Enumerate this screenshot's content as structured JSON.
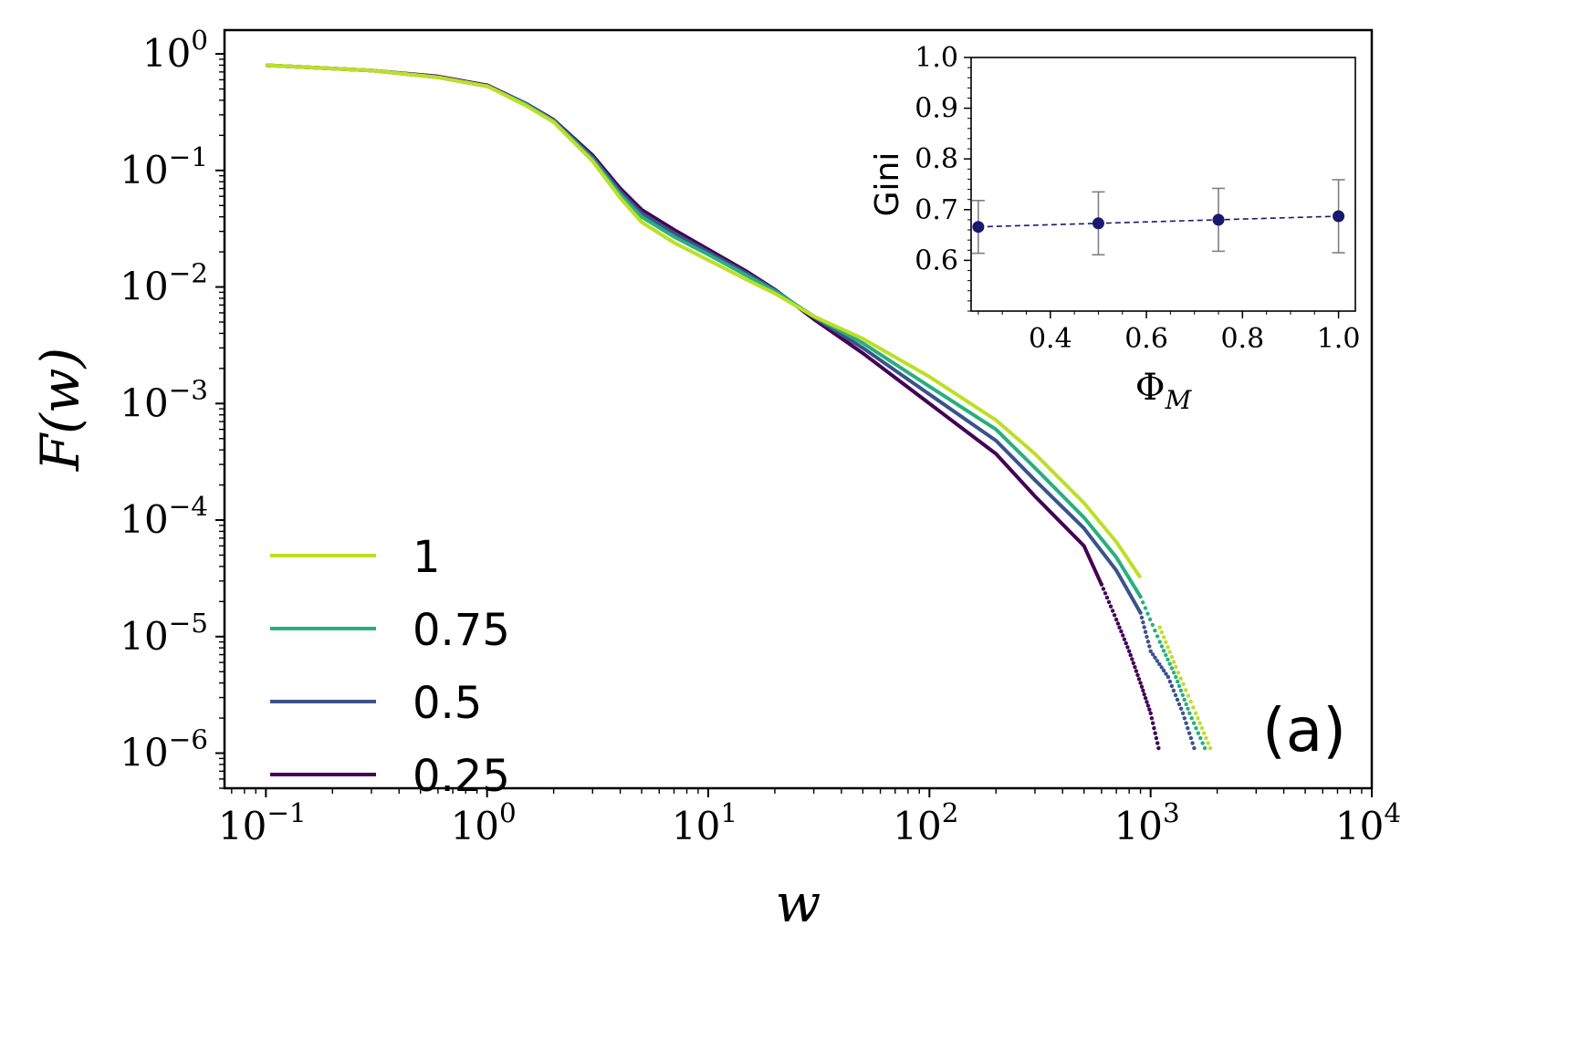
{
  "chart_data": [
    {
      "id": "main",
      "type": "line",
      "xscale": "log",
      "yscale": "log",
      "xlabel": "w",
      "ylabel": "F(w)",
      "xlim": [
        0.065,
        10000
      ],
      "ylim": [
        5e-07,
        1.6
      ],
      "xticks": [
        {
          "value": 0.1,
          "base": "10",
          "exp": "−1"
        },
        {
          "value": 1,
          "base": "10",
          "exp": "0"
        },
        {
          "value": 10,
          "base": "10",
          "exp": "1"
        },
        {
          "value": 100,
          "base": "10",
          "exp": "2"
        },
        {
          "value": 1000,
          "base": "10",
          "exp": "3"
        },
        {
          "value": 10000,
          "base": "10",
          "exp": "4"
        }
      ],
      "yticks": [
        {
          "value": 1,
          "base": "10",
          "exp": "0"
        },
        {
          "value": 0.1,
          "base": "10",
          "exp": "−1"
        },
        {
          "value": 0.01,
          "base": "10",
          "exp": "−2"
        },
        {
          "value": 0.001,
          "base": "10",
          "exp": "−3"
        },
        {
          "value": 0.0001,
          "base": "10",
          "exp": "−4"
        },
        {
          "value": 1e-05,
          "base": "10",
          "exp": "−5"
        },
        {
          "value": 1e-06,
          "base": "10",
          "exp": "−6"
        }
      ],
      "legend_position": "lower-left",
      "panel_label": "(a)",
      "series": [
        {
          "name": "1",
          "color": "#bddf26",
          "points": [
            [
              0.1,
              0.8
            ],
            [
              0.3,
              0.72
            ],
            [
              0.6,
              0.63
            ],
            [
              0.99,
              0.53
            ],
            [
              1.0,
              0.53
            ],
            [
              1.5,
              0.36
            ],
            [
              2.0,
              0.26
            ],
            [
              3.0,
              0.12
            ],
            [
              4.0,
              0.058
            ],
            [
              5.0,
              0.036
            ],
            [
              7.0,
              0.024
            ],
            [
              10,
              0.017
            ],
            [
              15,
              0.0115
            ],
            [
              20,
              0.0088
            ],
            [
              30,
              0.0056
            ],
            [
              50,
              0.0036
            ],
            [
              100,
              0.0017
            ],
            [
              200,
              0.00072
            ],
            [
              300,
              0.00037
            ],
            [
              500,
              0.00014
            ],
            [
              700,
              6.5e-05
            ],
            [
              900,
              3.2e-05
            ],
            [
              1100,
              1.2e-05
            ],
            [
              1300,
              5.5e-06
            ],
            [
              1600,
              2.2e-06
            ],
            [
              1900,
              1e-06
            ]
          ]
        },
        {
          "name": "0.75",
          "color": "#29af7f",
          "points": [
            [
              0.1,
              0.8
            ],
            [
              0.3,
              0.72
            ],
            [
              0.6,
              0.63
            ],
            [
              0.99,
              0.53
            ],
            [
              1.0,
              0.53
            ],
            [
              1.5,
              0.37
            ],
            [
              2.0,
              0.265
            ],
            [
              3.0,
              0.125
            ],
            [
              4.0,
              0.062
            ],
            [
              5.0,
              0.04
            ],
            [
              7.0,
              0.027
            ],
            [
              10,
              0.019
            ],
            [
              15,
              0.0125
            ],
            [
              20,
              0.0092
            ],
            [
              30,
              0.0056
            ],
            [
              50,
              0.0033
            ],
            [
              100,
              0.0014
            ],
            [
              200,
              0.0006
            ],
            [
              300,
              0.00028
            ],
            [
              500,
              0.000105
            ],
            [
              700,
              4.8e-05
            ],
            [
              900,
              2.2e-05
            ],
            [
              1100,
              9e-06
            ],
            [
              1300,
              4.5e-06
            ],
            [
              1500,
              2.2e-06
            ],
            [
              1800,
              1e-06
            ]
          ]
        },
        {
          "name": "0.5",
          "color": "#3b528b",
          "points": [
            [
              0.1,
              0.8
            ],
            [
              0.3,
              0.72
            ],
            [
              0.6,
              0.63
            ],
            [
              0.99,
              0.53
            ],
            [
              1.0,
              0.53
            ],
            [
              1.5,
              0.37
            ],
            [
              2.0,
              0.268
            ],
            [
              3.0,
              0.13
            ],
            [
              4.0,
              0.066
            ],
            [
              5.0,
              0.043
            ],
            [
              7.0,
              0.029
            ],
            [
              10,
              0.02
            ],
            [
              15,
              0.013
            ],
            [
              20,
              0.0094
            ],
            [
              30,
              0.0055
            ],
            [
              50,
              0.003
            ],
            [
              100,
              0.0012
            ],
            [
              200,
              0.00048
            ],
            [
              300,
              0.00022
            ],
            [
              500,
              8.5e-05
            ],
            [
              700,
              3.7e-05
            ],
            [
              900,
              1.6e-05
            ],
            [
              1000,
              7.5e-06
            ],
            [
              1200,
              4.5e-06
            ],
            [
              1400,
              2.2e-06
            ],
            [
              1600,
              1e-06
            ]
          ]
        },
        {
          "name": "0.25",
          "color": "#440154",
          "points": [
            [
              0.1,
              0.8
            ],
            [
              0.3,
              0.72
            ],
            [
              0.6,
              0.64
            ],
            [
              0.99,
              0.54
            ],
            [
              1.0,
              0.54
            ],
            [
              1.5,
              0.375
            ],
            [
              2.0,
              0.272
            ],
            [
              3.0,
              0.135
            ],
            [
              4.0,
              0.07
            ],
            [
              5.0,
              0.046
            ],
            [
              7.0,
              0.031
            ],
            [
              10,
              0.021
            ],
            [
              15,
              0.0135
            ],
            [
              20,
              0.0095
            ],
            [
              30,
              0.0053
            ],
            [
              50,
              0.0027
            ],
            [
              100,
              0.001
            ],
            [
              200,
              0.00037
            ],
            [
              300,
              0.00016
            ],
            [
              500,
              6e-05
            ],
            [
              600,
              2.8e-05
            ],
            [
              700,
              1.4e-05
            ],
            [
              800,
              7.5e-06
            ],
            [
              900,
              4e-06
            ],
            [
              1000,
              2.2e-06
            ],
            [
              1100,
              1e-06
            ]
          ]
        }
      ]
    },
    {
      "id": "inset",
      "type": "scatter",
      "xlabel": "Φ",
      "xlabel_sub": "M",
      "ylabel": "Gini",
      "xlim": [
        0.235,
        1.035
      ],
      "ylim": [
        0.5,
        1.0
      ],
      "xticks": [
        0.4,
        0.6,
        0.8,
        1.0
      ],
      "yticks": [
        0.6,
        0.7,
        0.8,
        0.9,
        1.0
      ],
      "x": [
        0.25,
        0.5,
        0.75,
        1.0
      ],
      "y": [
        0.666,
        0.673,
        0.68,
        0.687
      ],
      "yerr": [
        0.052,
        0.062,
        0.062,
        0.072
      ],
      "marker_color": "#191970",
      "errorbar_color": "#808080"
    }
  ]
}
